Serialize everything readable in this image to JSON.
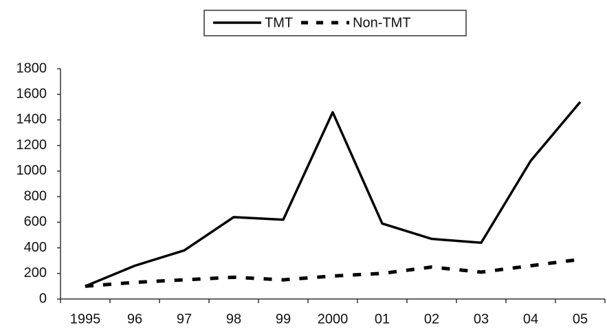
{
  "chart_data": {
    "type": "line",
    "categories": [
      "1995",
      "96",
      "97",
      "98",
      "99",
      "2000",
      "01",
      "02",
      "03",
      "04",
      "05"
    ],
    "series": [
      {
        "name": "TMT",
        "color": "#000000",
        "dash": false,
        "values": [
          100,
          260,
          380,
          640,
          620,
          1460,
          590,
          470,
          440,
          1080,
          1540
        ]
      },
      {
        "name": "Non-TMT",
        "color": "#000000",
        "dash": true,
        "values": [
          100,
          130,
          150,
          170,
          150,
          180,
          200,
          250,
          210,
          260,
          310
        ]
      }
    ],
    "ylim": [
      0,
      1800
    ],
    "yticks": [
      0,
      200,
      400,
      600,
      800,
      1000,
      1200,
      1400,
      1600,
      1800
    ],
    "grid": false,
    "legend": "top"
  }
}
